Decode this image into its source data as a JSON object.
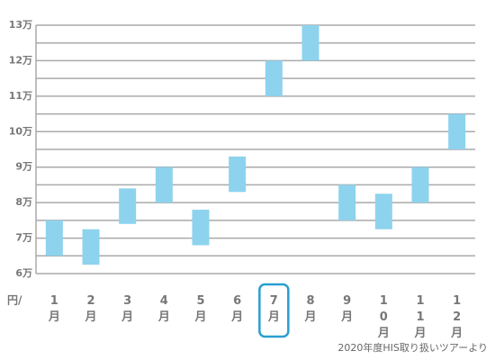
{
  "chart_data": {
    "type": "range-bar",
    "categories": [
      "1月",
      "2月",
      "3月",
      "4月",
      "5月",
      "6月",
      "7月",
      "8月",
      "9月",
      "10月",
      "11月",
      "12月"
    ],
    "low": [
      6.5,
      6.25,
      7.4,
      8,
      6.8,
      8.3,
      11,
      12,
      7.5,
      7.25,
      8,
      9.5
    ],
    "high": [
      7.5,
      7.25,
      8.4,
      9,
      7.8,
      9.3,
      12,
      13,
      8.5,
      8.25,
      9,
      10.5
    ],
    "color": "#8dd3ee",
    "ylim": [
      6,
      13
    ],
    "yticks": [
      {
        "value": 6,
        "label": "6万"
      },
      {
        "value": 7,
        "label": "7万"
      },
      {
        "value": 8,
        "label": "8万"
      },
      {
        "value": 9,
        "label": "9万"
      },
      {
        "value": 10,
        "label": "10万"
      },
      {
        "value": 11,
        "label": "11万"
      },
      {
        "value": 12,
        "label": "12万"
      },
      {
        "value": 13,
        "label": "13万"
      }
    ],
    "minor_yticks": [
      6.5,
      7.5,
      8.5,
      9.5,
      10.5,
      11.5,
      12.5
    ],
    "grid": true,
    "highlight_index": 6,
    "highlight_color": "#2a9fd0",
    "y_unit_label": "円/",
    "source": "2020年度HIS取り扱いツアーより"
  }
}
